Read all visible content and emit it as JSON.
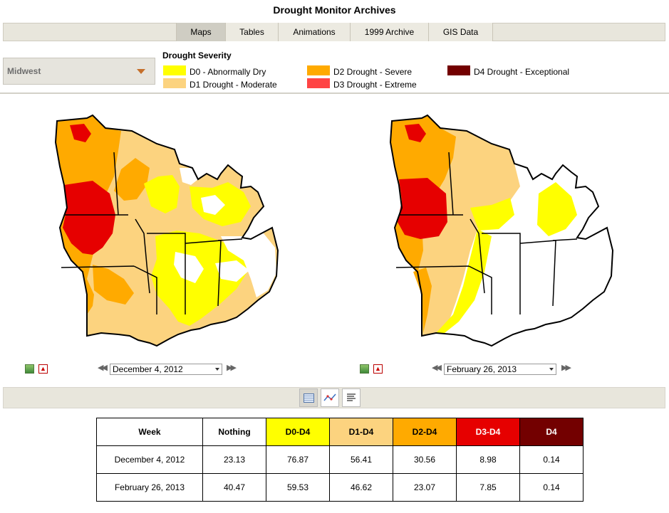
{
  "page": {
    "title": "Drought Monitor Archives"
  },
  "nav": {
    "tabs": [
      {
        "label": "Maps",
        "active": true
      },
      {
        "label": "Tables"
      },
      {
        "label": "Animations"
      },
      {
        "label": "1999 Archive"
      },
      {
        "label": "GIS Data"
      }
    ]
  },
  "region": {
    "selected": "Midwest"
  },
  "legend": {
    "title": "Drought Severity",
    "items": [
      {
        "label": "D0 - Abnormally Dry",
        "color": "#ffff00"
      },
      {
        "label": "D1 Drought - Moderate",
        "color": "#fcd37f"
      },
      {
        "label": "D2 Drought - Severe",
        "color": "#ffaa00"
      },
      {
        "label": "D3 Drought - Extreme",
        "color": "#e60000"
      },
      {
        "label": "D4 Drought - Exceptional",
        "color": "#730000"
      }
    ]
  },
  "maps": [
    {
      "date": "December 4, 2012",
      "icons": [
        "image-icon",
        "pdf-icon"
      ]
    },
    {
      "date": "February 26, 2013",
      "icons": [
        "image-icon",
        "pdf-icon"
      ]
    }
  ],
  "view_buttons": [
    "table-view-icon",
    "chart-view-icon",
    "text-view-icon"
  ],
  "table": {
    "headers": [
      "Week",
      "Nothing",
      "D0-D4",
      "D1-D4",
      "D2-D4",
      "D3-D4",
      "D4"
    ],
    "header_colors": [
      "#ffffff",
      "#ffffff",
      "#ffff00",
      "#fcd37f",
      "#ffaa00",
      "#e60000",
      "#730000"
    ],
    "rows": [
      [
        "December 4, 2012",
        "23.13",
        "76.87",
        "56.41",
        "30.56",
        "8.98",
        "0.14"
      ],
      [
        "February 26, 2013",
        "40.47",
        "59.53",
        "46.62",
        "23.07",
        "7.85",
        "0.14"
      ]
    ]
  }
}
